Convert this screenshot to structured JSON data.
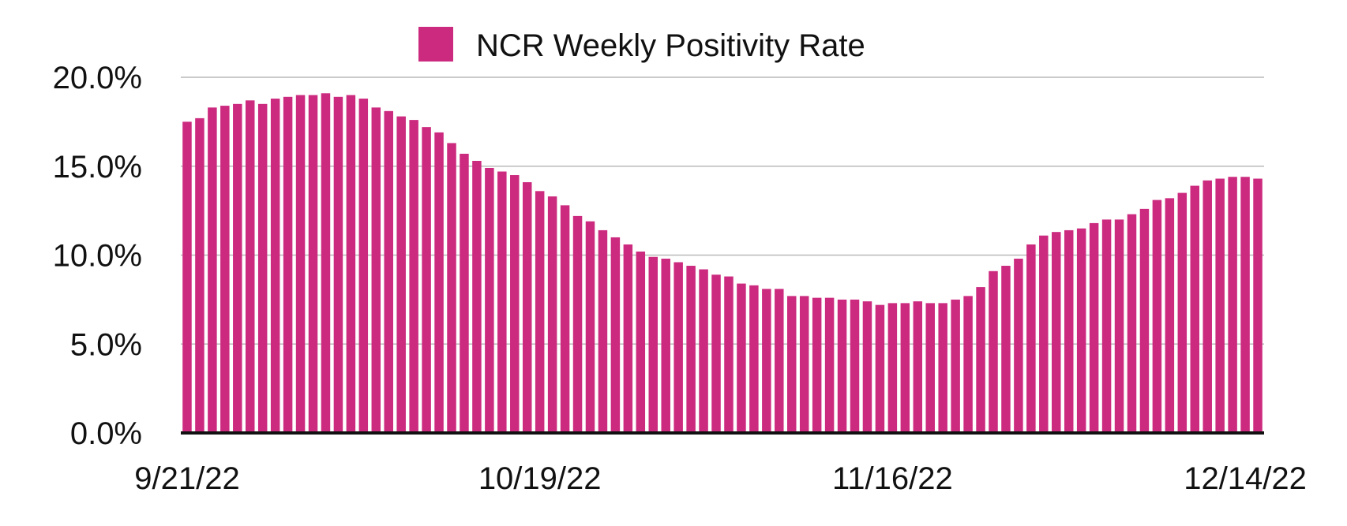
{
  "chart_data": {
    "type": "bar",
    "title": "",
    "legend": {
      "label": "NCR Weekly Positivity Rate",
      "position": "top"
    },
    "series": [
      {
        "name": "NCR Weekly Positivity Rate",
        "color": "#cc2a7f",
        "values": [
          17.5,
          17.7,
          18.3,
          18.4,
          18.5,
          18.7,
          18.5,
          18.8,
          18.9,
          19.0,
          19.0,
          19.1,
          18.9,
          19.0,
          18.8,
          18.3,
          18.1,
          17.8,
          17.6,
          17.2,
          16.9,
          16.3,
          15.7,
          15.3,
          14.9,
          14.7,
          14.5,
          14.1,
          13.6,
          13.3,
          12.8,
          12.2,
          11.9,
          11.4,
          11.0,
          10.6,
          10.2,
          9.9,
          9.8,
          9.6,
          9.4,
          9.2,
          8.9,
          8.8,
          8.4,
          8.3,
          8.1,
          8.1,
          7.7,
          7.7,
          7.6,
          7.6,
          7.5,
          7.5,
          7.4,
          7.2,
          7.3,
          7.3,
          7.4,
          7.3,
          7.3,
          7.5,
          7.7,
          8.2,
          9.1,
          9.4,
          9.8,
          10.6,
          11.1,
          11.3,
          11.4,
          11.5,
          11.8,
          12.0,
          12.0,
          12.3,
          12.6,
          13.1,
          13.2,
          13.5,
          13.9,
          14.2,
          14.3,
          14.4,
          14.4,
          14.3
        ]
      }
    ],
    "x_start_date": "9/21/22",
    "x_tick_labels": [
      {
        "index": 0,
        "label": "9/21/22"
      },
      {
        "index": 28,
        "label": "10/19/22"
      },
      {
        "index": 56,
        "label": "11/16/22"
      },
      {
        "index": 84,
        "label": "12/14/22"
      }
    ],
    "xlabel": "",
    "ylabel": "",
    "ylim": [
      0,
      20
    ],
    "y_ticks": [
      {
        "value": 0,
        "label": "0.0%"
      },
      {
        "value": 5,
        "label": "5.0%"
      },
      {
        "value": 10,
        "label": "10.0%"
      },
      {
        "value": 15,
        "label": "15.0%"
      },
      {
        "value": 20,
        "label": "20.0%"
      }
    ],
    "grid": true
  }
}
